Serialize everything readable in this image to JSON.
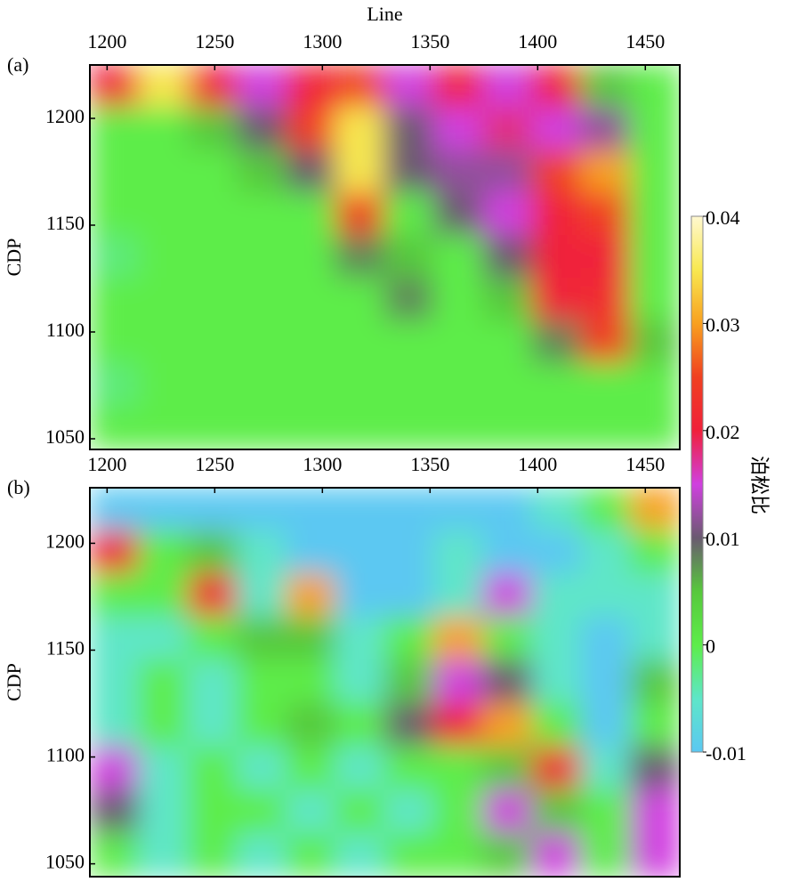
{
  "chart_data": [
    {
      "type": "heatmap",
      "label": "(a)",
      "x_label": "Line",
      "y_label": "CDP",
      "xlim": [
        1192,
        1466
      ],
      "ylim": [
        1045,
        1225
      ],
      "xticks": [
        1200,
        1250,
        1300,
        1350,
        1400,
        1450
      ],
      "yticks": [
        1050,
        1100,
        1150,
        1200
      ],
      "z": [
        [
          0.02,
          0.035,
          0.02,
          0.015,
          0.02,
          0.025,
          0.015,
          0.02,
          0.015,
          0.02,
          0.005,
          0
        ],
        [
          0,
          0,
          0.005,
          0.01,
          0.025,
          0.035,
          0.01,
          0.015,
          0.018,
          0.015,
          0.012,
          0
        ],
        [
          0,
          0,
          0,
          0.005,
          0.01,
          0.035,
          0.01,
          0.012,
          0.012,
          0.025,
          0.03,
          0
        ],
        [
          0,
          0,
          0,
          0,
          0,
          0.025,
          0,
          0.01,
          0.015,
          0.02,
          0.025,
          0
        ],
        [
          -0.002,
          0,
          0,
          0,
          0,
          0.008,
          0.005,
          0,
          0.01,
          0.02,
          0.02,
          0
        ],
        [
          0,
          0,
          0,
          0,
          0,
          0,
          0.008,
          0,
          0.005,
          0.02,
          0.022,
          0
        ],
        [
          0,
          0,
          0,
          0,
          0,
          0,
          0,
          0,
          0,
          0.008,
          0.025,
          0.005
        ],
        [
          -0.002,
          0,
          0,
          0,
          0,
          0,
          0,
          0,
          0,
          0,
          0,
          0
        ],
        [
          0,
          0,
          0,
          0,
          0,
          0,
          0,
          0,
          0,
          0,
          0,
          0
        ]
      ],
      "colorbar": {
        "label": "泊松比",
        "lim": [
          -0.01,
          0.04
        ],
        "ticks": [
          0.04,
          0.03,
          0.02,
          0.01,
          0,
          -0.01
        ],
        "colors": [
          "#5bc8f2",
          "#5ee6c8",
          "#5ded4a",
          "#57c83c",
          "#6a5a70",
          "#d040e0",
          "#f0203a",
          "#f04020",
          "#f8a020",
          "#f8e850",
          "#fff8d0"
        ]
      }
    },
    {
      "type": "heatmap",
      "label": "(b)",
      "y_label": "CDP",
      "xlim": [
        1192,
        1466
      ],
      "ylim": [
        1044,
        1226
      ],
      "xticks": [
        1200,
        1250,
        1300,
        1350,
        1400,
        1450
      ],
      "yticks": [
        1050,
        1100,
        1150,
        1200
      ],
      "z": [
        [
          -0.01,
          -0.01,
          -0.01,
          -0.01,
          -0.01,
          -0.01,
          -0.01,
          -0.01,
          -0.01,
          -0.005,
          0,
          0.03
        ],
        [
          0.02,
          0,
          0.005,
          -0.005,
          -0.01,
          -0.01,
          -0.01,
          -0.005,
          -0.01,
          -0.01,
          -0.005,
          0
        ],
        [
          0,
          0,
          0.02,
          -0.005,
          0.03,
          -0.01,
          -0.01,
          -0.005,
          0.015,
          -0.005,
          -0.005,
          -0.005
        ],
        [
          -0.005,
          -0.005,
          0,
          0.005,
          0.005,
          -0.005,
          0,
          0.03,
          0,
          -0.005,
          -0.01,
          -0.005
        ],
        [
          -0.005,
          0,
          -0.005,
          0,
          0,
          -0.005,
          0.005,
          0.015,
          0.01,
          -0.005,
          -0.01,
          0.005
        ],
        [
          -0.005,
          0,
          -0.005,
          0,
          0.005,
          0,
          0.01,
          0.02,
          0.03,
          0,
          -0.01,
          0
        ],
        [
          0.015,
          -0.005,
          0,
          -0.005,
          0,
          -0.005,
          0,
          0,
          0.005,
          0.02,
          -0.005,
          0.01
        ],
        [
          0.01,
          -0.005,
          0,
          0,
          -0.005,
          0,
          -0.005,
          0,
          0.015,
          0.005,
          0,
          0.015
        ],
        [
          0,
          -0.005,
          0,
          -0.005,
          0,
          -0.005,
          0,
          0,
          0.005,
          0.015,
          0,
          0.015
        ]
      ]
    }
  ]
}
